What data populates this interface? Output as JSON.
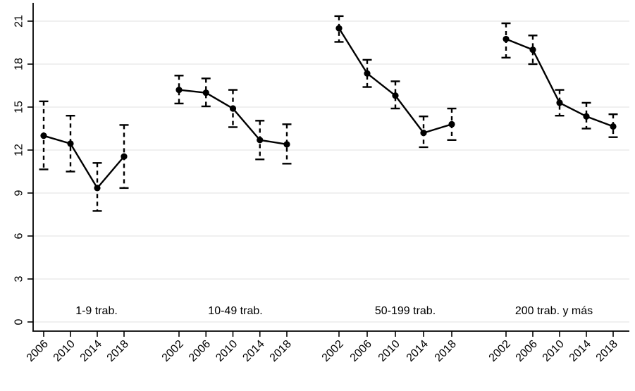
{
  "chart_data": {
    "type": "line",
    "title": "",
    "xlabel": "",
    "ylabel": "",
    "ylim": [
      0,
      21
    ],
    "yticks": [
      0,
      3,
      6,
      9,
      12,
      15,
      18,
      21
    ],
    "grid": "horizontal-light-gray",
    "legend_position": "none",
    "marker": "filled-circle",
    "ci_style": "dashed-vertical-line-with-solid-caps",
    "x_tick_label_angle": 45,
    "y_tick_label_angle": 90,
    "groups": [
      {
        "label": "1-9 trab.",
        "categories": [
          "2006",
          "2010",
          "2014",
          "2018"
        ],
        "values": [
          13.0,
          12.45,
          9.35,
          11.55
        ],
        "ci_low": [
          10.65,
          10.5,
          7.75,
          9.35
        ],
        "ci_high": [
          15.4,
          14.4,
          11.1,
          13.75
        ]
      },
      {
        "label": "10-49 trab.",
        "categories": [
          "2002",
          "2006",
          "2010",
          "2014",
          "2018"
        ],
        "values": [
          16.2,
          16.0,
          14.9,
          12.7,
          12.4
        ],
        "ci_low": [
          15.25,
          15.05,
          13.6,
          11.35,
          11.05
        ],
        "ci_high": [
          17.2,
          17.0,
          16.2,
          14.05,
          13.8
        ]
      },
      {
        "label": "50-199 trab.",
        "categories": [
          "2002",
          "2006",
          "2010",
          "2014",
          "2018"
        ],
        "values": [
          20.5,
          17.35,
          15.8,
          13.2,
          13.8
        ],
        "ci_low": [
          19.55,
          16.4,
          14.9,
          12.2,
          12.7
        ],
        "ci_high": [
          21.35,
          18.3,
          16.8,
          14.35,
          14.9
        ]
      },
      {
        "label": "200 trab. y más",
        "categories": [
          "2002",
          "2006",
          "2010",
          "2014",
          "2018"
        ],
        "values": [
          19.75,
          19.0,
          15.3,
          14.35,
          13.65
        ],
        "ci_low": [
          18.45,
          18.0,
          14.4,
          13.5,
          12.9
        ],
        "ci_high": [
          20.85,
          20.0,
          16.2,
          15.3,
          14.5
        ]
      }
    ],
    "colors": {
      "background": "#ffffff",
      "line": "#000000",
      "marker": "#000000",
      "ci": "#000000",
      "axis": "#000000",
      "grid": "#ebebeb",
      "text": "#000000"
    }
  }
}
